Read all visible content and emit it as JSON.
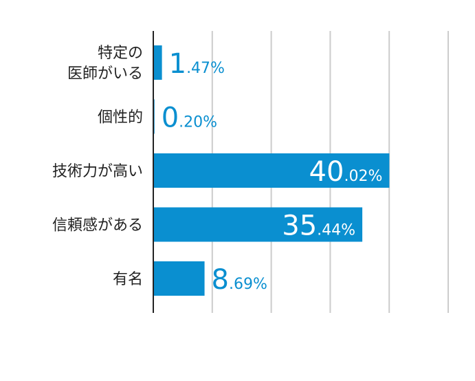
{
  "colors": {
    "bar": "#0a8fd0",
    "grid": "#cccccc",
    "axis": "#222222",
    "label_outside": "#0a8fd0",
    "label_inside": "#ffffff"
  },
  "chart_data": {
    "type": "bar",
    "orientation": "horizontal",
    "title": "",
    "xlabel": "",
    "ylabel": "",
    "grid": true,
    "categories": [
      [
        "特定の",
        "医師がいる"
      ],
      [
        "個性的"
      ],
      [
        "技術力が高い"
      ],
      [
        "信頼感がある"
      ],
      [
        "有名"
      ]
    ],
    "values": [
      1.47,
      0.2,
      40.02,
      35.44,
      8.69
    ],
    "value_labels": [
      {
        "int": "1",
        "dec": ".47%"
      },
      {
        "int": "0",
        "dec": ".20%"
      },
      {
        "int": "40",
        "dec": ".02%"
      },
      {
        "int": "35",
        "dec": ".44%"
      },
      {
        "int": "8",
        "dec": ".69%"
      }
    ],
    "xlim": [
      0,
      50
    ],
    "x_gridlines": [
      10,
      20,
      30,
      40,
      50
    ]
  }
}
